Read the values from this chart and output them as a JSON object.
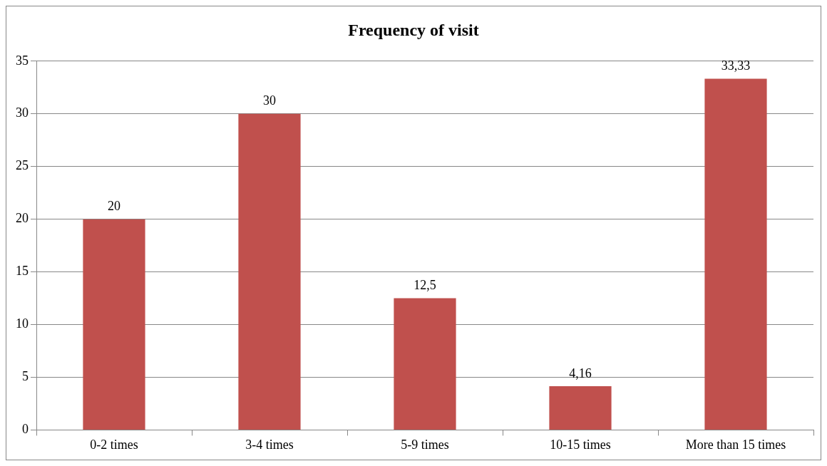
{
  "chart_data": {
    "type": "bar",
    "title": "Frequency of visit",
    "categories": [
      "0-2 times",
      "3-4 times",
      "5-9 times",
      "10-15 times",
      "More than 15 times"
    ],
    "values": [
      20,
      30,
      12.5,
      4.16,
      33.33
    ],
    "value_labels": [
      "20",
      "30",
      "12,5",
      "4,16",
      "33,33"
    ],
    "color": "#c0504d",
    "ylim": [
      0,
      35
    ],
    "yticks": [
      0,
      5,
      10,
      15,
      20,
      25,
      30,
      35
    ],
    "grid": "y"
  }
}
